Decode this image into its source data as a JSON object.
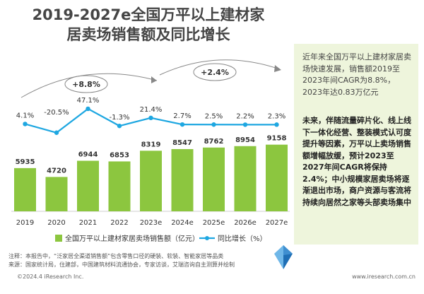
{
  "title_line1": "2019-2027e全国万平以上建材家",
  "title_line2": "居卖场销售额及同比增长",
  "side_para1": "近年来全国万平以上建材家居卖场快速发展，销售额2019至2023年间CAGR为8.8%，2023年达0.83万亿元",
  "side_para2": "未来，伴随流量碎片化、线上线下一体化经营、整装模式认可度提升等因素，万平以上卖场销售额增幅放缓，预计2023至2027年间CAGR将保持2.4%；中小规模家居卖场将逐渐退出市场，商户资源与客流将持续向居然之家等头部卖场集中",
  "note_line1": "注释：本报告中，“泛家居全渠道销售额”包含零售口径的硬装、软装、智能家居等品类",
  "note_line2": "来源：国家统计局，住建部，中国建筑材料流通协会，专家访谈，艾瑞咨询自主测算并绘制",
  "footer_left": "©2024.4 iResearch Inc.",
  "footer_right": "www.iresearch.com.cn",
  "colors": {
    "bar": "#8cc63f",
    "line": "#1ea7e1",
    "side_bg": "#eef5dc"
  },
  "chart_data": {
    "type": "bar",
    "categories": [
      "2019",
      "2020",
      "2021",
      "2022",
      "2023e",
      "2024e",
      "2025e",
      "2026e",
      "2027e"
    ],
    "series": [
      {
        "name": "全国万平以上建材家居卖场销售额（亿元）",
        "type": "bar",
        "values": [
          5935,
          4720,
          6944,
          6853,
          8319,
          8547,
          8762,
          8954,
          9158
        ]
      },
      {
        "name": "同比增长（%）",
        "type": "line",
        "values": [
          4.1,
          -20.5,
          47.1,
          -1.3,
          21.4,
          2.7,
          2.5,
          2.2,
          2.3
        ],
        "labels": [
          "4.1%",
          "-20.5%",
          "47.1%",
          "-1.3%",
          "21.4%",
          "2.7%",
          "2.5%",
          "2.2%",
          "2.3%"
        ]
      }
    ],
    "annotations": [
      "+8.8%",
      "+2.4%"
    ],
    "legend_position": "bottom"
  }
}
